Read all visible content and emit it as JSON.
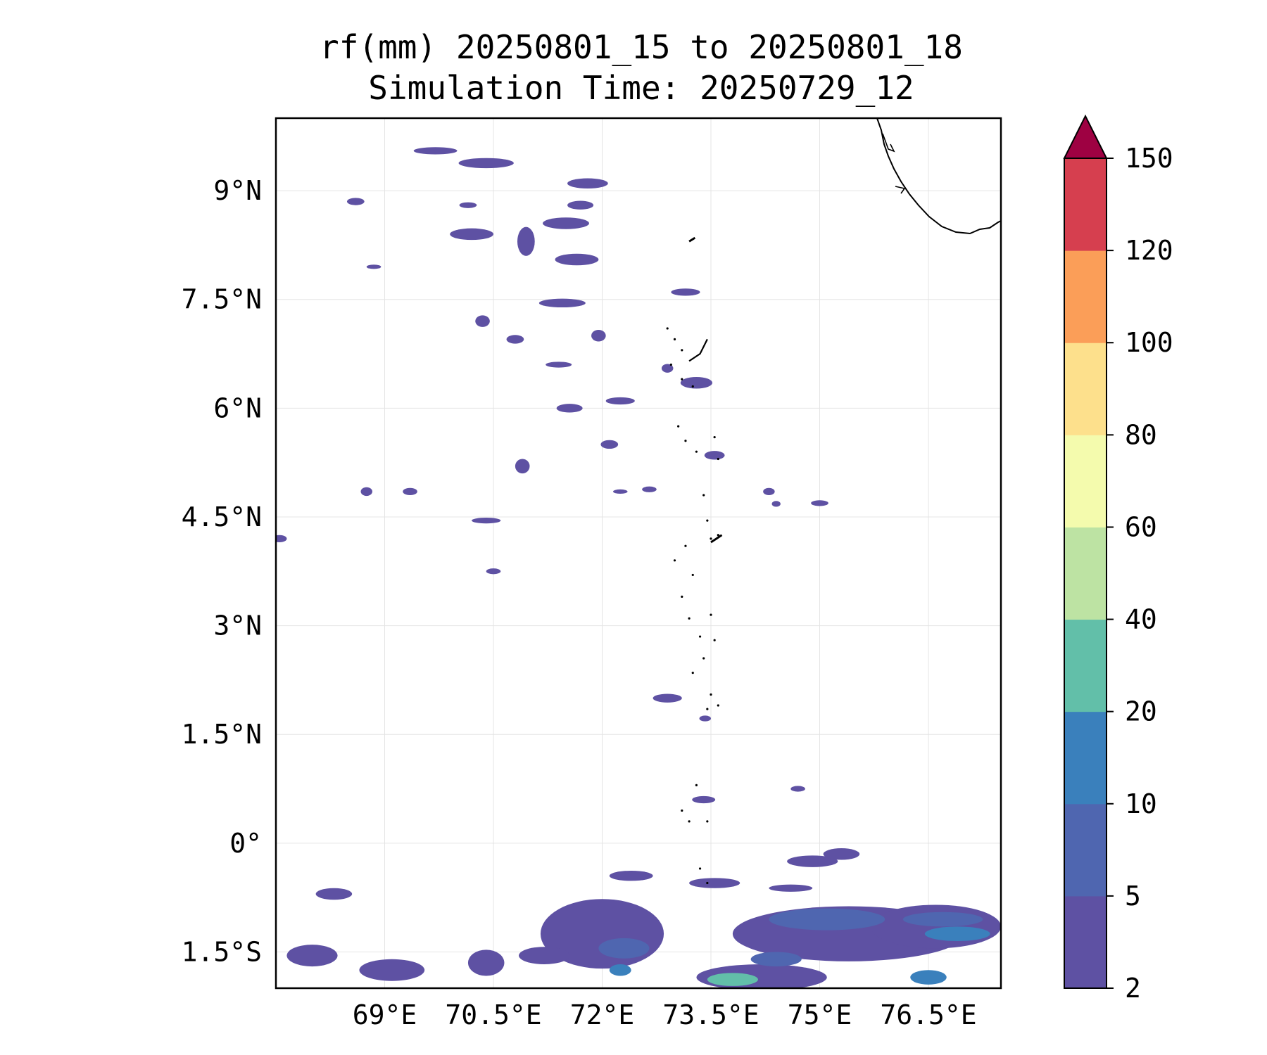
{
  "title": {
    "line1": "rf(mm) 20250801_15 to 20250801_18",
    "line2": "Simulation Time: 20250729_12"
  },
  "map": {
    "lon_range": [
      67.5,
      77.5
    ],
    "lat_range": [
      -2.0,
      10.0
    ],
    "lon_ticks": [
      {
        "value": 69.0,
        "label": "69°E"
      },
      {
        "value": 70.5,
        "label": "70.5°E"
      },
      {
        "value": 72.0,
        "label": "72°E"
      },
      {
        "value": 73.5,
        "label": "73.5°E"
      },
      {
        "value": 75.0,
        "label": "75°E"
      },
      {
        "value": 76.5,
        "label": "76.5°E"
      }
    ],
    "lat_ticks": [
      {
        "value": 9.0,
        "label": "9°N"
      },
      {
        "value": 7.5,
        "label": "7.5°N"
      },
      {
        "value": 6.0,
        "label": "6°N"
      },
      {
        "value": 4.5,
        "label": "4.5°N"
      },
      {
        "value": 3.0,
        "label": "3°N"
      },
      {
        "value": 1.5,
        "label": "1.5°N"
      },
      {
        "value": 0.0,
        "label": "0°"
      },
      {
        "value": -1.5,
        "label": "1.5°S"
      }
    ],
    "grid": true
  },
  "colorbar": {
    "levels": [
      "2",
      "5",
      "10",
      "20",
      "40",
      "60",
      "80",
      "100",
      "120",
      "150"
    ],
    "colors": [
      "#5e51a3",
      "#4f66b0",
      "#3a80bc",
      "#62bfa9",
      "#bde3a3",
      "#f4fbad",
      "#fde08c",
      "#fb9e58",
      "#d63f4f"
    ],
    "extend_color": "#9e0142"
  },
  "chart_data": {
    "type": "contour-map",
    "variable": "rf(mm)",
    "period": "20250801_15 to 20250801_18",
    "simulation_time": "20250729_12",
    "levels": [
      2,
      5,
      10,
      20,
      40,
      60,
      80,
      100,
      120,
      150
    ],
    "extend": "max",
    "rain_patches": [
      {
        "lon": 68.6,
        "lat": 8.85,
        "rx": 0.12,
        "ry": 0.05,
        "level": 2
      },
      {
        "lon": 69.7,
        "lat": 9.55,
        "rx": 0.3,
        "ry": 0.05,
        "level": 2
      },
      {
        "lon": 70.4,
        "lat": 9.38,
        "rx": 0.38,
        "ry": 0.07,
        "level": 2
      },
      {
        "lon": 71.8,
        "lat": 9.1,
        "rx": 0.28,
        "ry": 0.07,
        "level": 2
      },
      {
        "lon": 71.5,
        "lat": 8.55,
        "rx": 0.32,
        "ry": 0.08,
        "level": 2
      },
      {
        "lon": 71.65,
        "lat": 8.05,
        "rx": 0.3,
        "ry": 0.08,
        "level": 2
      },
      {
        "lon": 70.2,
        "lat": 8.4,
        "rx": 0.3,
        "ry": 0.08,
        "level": 2
      },
      {
        "lon": 70.15,
        "lat": 8.8,
        "rx": 0.12,
        "ry": 0.04,
        "level": 2
      },
      {
        "lon": 70.95,
        "lat": 8.3,
        "rx": 0.12,
        "ry": 0.2,
        "level": 2
      },
      {
        "lon": 71.7,
        "lat": 8.8,
        "rx": 0.18,
        "ry": 0.06,
        "level": 2
      },
      {
        "lon": 68.85,
        "lat": 7.95,
        "rx": 0.1,
        "ry": 0.03,
        "level": 2
      },
      {
        "lon": 71.45,
        "lat": 7.45,
        "rx": 0.32,
        "ry": 0.06,
        "level": 2
      },
      {
        "lon": 71.95,
        "lat": 7.0,
        "rx": 0.1,
        "ry": 0.08,
        "level": 2
      },
      {
        "lon": 70.35,
        "lat": 7.2,
        "rx": 0.1,
        "ry": 0.08,
        "level": 2
      },
      {
        "lon": 70.8,
        "lat": 6.95,
        "rx": 0.12,
        "ry": 0.06,
        "level": 2
      },
      {
        "lon": 71.4,
        "lat": 6.6,
        "rx": 0.18,
        "ry": 0.04,
        "level": 2
      },
      {
        "lon": 73.15,
        "lat": 7.6,
        "rx": 0.2,
        "ry": 0.05,
        "level": 2
      },
      {
        "lon": 73.3,
        "lat": 6.35,
        "rx": 0.22,
        "ry": 0.08,
        "level": 2
      },
      {
        "lon": 72.9,
        "lat": 6.55,
        "rx": 0.08,
        "ry": 0.06,
        "level": 2
      },
      {
        "lon": 72.25,
        "lat": 6.1,
        "rx": 0.2,
        "ry": 0.05,
        "level": 2
      },
      {
        "lon": 71.55,
        "lat": 6.0,
        "rx": 0.18,
        "ry": 0.06,
        "level": 2
      },
      {
        "lon": 72.1,
        "lat": 5.5,
        "rx": 0.12,
        "ry": 0.06,
        "level": 2
      },
      {
        "lon": 70.9,
        "lat": 5.2,
        "rx": 0.1,
        "ry": 0.1,
        "level": 2
      },
      {
        "lon": 73.55,
        "lat": 5.35,
        "rx": 0.14,
        "ry": 0.06,
        "level": 2
      },
      {
        "lon": 74.3,
        "lat": 4.85,
        "rx": 0.08,
        "ry": 0.05,
        "level": 2
      },
      {
        "lon": 74.4,
        "lat": 4.68,
        "rx": 0.06,
        "ry": 0.04,
        "level": 2
      },
      {
        "lon": 75.0,
        "lat": 4.69,
        "rx": 0.12,
        "ry": 0.04,
        "level": 2
      },
      {
        "lon": 72.65,
        "lat": 4.88,
        "rx": 0.1,
        "ry": 0.04,
        "level": 2
      },
      {
        "lon": 72.25,
        "lat": 4.85,
        "rx": 0.1,
        "ry": 0.03,
        "level": 2
      },
      {
        "lon": 69.35,
        "lat": 4.85,
        "rx": 0.1,
        "ry": 0.05,
        "level": 2
      },
      {
        "lon": 68.75,
        "lat": 4.85,
        "rx": 0.08,
        "ry": 0.06,
        "level": 2
      },
      {
        "lon": 70.4,
        "lat": 4.45,
        "rx": 0.2,
        "ry": 0.04,
        "level": 2
      },
      {
        "lon": 67.55,
        "lat": 4.2,
        "rx": 0.1,
        "ry": 0.05,
        "level": 2
      },
      {
        "lon": 70.5,
        "lat": 3.75,
        "rx": 0.1,
        "ry": 0.04,
        "level": 2
      },
      {
        "lon": 72.9,
        "lat": 2.0,
        "rx": 0.2,
        "ry": 0.06,
        "level": 2
      },
      {
        "lon": 73.42,
        "lat": 1.72,
        "rx": 0.08,
        "ry": 0.04,
        "level": 2
      },
      {
        "lon": 73.4,
        "lat": 0.6,
        "rx": 0.16,
        "ry": 0.05,
        "level": 2
      },
      {
        "lon": 74.7,
        "lat": 0.75,
        "rx": 0.1,
        "ry": 0.04,
        "level": 2
      },
      {
        "lon": 74.9,
        "lat": -0.25,
        "rx": 0.35,
        "ry": 0.08,
        "level": 2
      },
      {
        "lon": 75.3,
        "lat": -0.15,
        "rx": 0.25,
        "ry": 0.08,
        "level": 2
      },
      {
        "lon": 74.6,
        "lat": -0.62,
        "rx": 0.3,
        "ry": 0.05,
        "level": 2
      },
      {
        "lon": 73.55,
        "lat": -0.55,
        "rx": 0.35,
        "ry": 0.07,
        "level": 2
      },
      {
        "lon": 72.4,
        "lat": -0.45,
        "rx": 0.3,
        "ry": 0.07,
        "level": 2
      },
      {
        "lon": 68.3,
        "lat": -0.7,
        "rx": 0.25,
        "ry": 0.08,
        "level": 2
      },
      {
        "lon": 75.4,
        "lat": -1.25,
        "rx": 1.6,
        "ry": 0.38,
        "level": 2
      },
      {
        "lon": 76.6,
        "lat": -1.15,
        "rx": 0.9,
        "ry": 0.3,
        "level": 2
      },
      {
        "lon": 72.0,
        "lat": -1.25,
        "rx": 0.85,
        "ry": 0.48,
        "level": 2
      },
      {
        "lon": 74.2,
        "lat": -1.85,
        "rx": 0.9,
        "ry": 0.18,
        "level": 2
      },
      {
        "lon": 68.0,
        "lat": -1.55,
        "rx": 0.35,
        "ry": 0.15,
        "level": 2
      },
      {
        "lon": 69.1,
        "lat": -1.75,
        "rx": 0.45,
        "ry": 0.15,
        "level": 2
      },
      {
        "lon": 71.2,
        "lat": -1.55,
        "rx": 0.35,
        "ry": 0.12,
        "level": 2
      },
      {
        "lon": 70.4,
        "lat": -1.65,
        "rx": 0.25,
        "ry": 0.18,
        "level": 2
      },
      {
        "lon": 75.1,
        "lat": -1.05,
        "rx": 0.8,
        "ry": 0.15,
        "level": 5
      },
      {
        "lon": 76.7,
        "lat": -1.05,
        "rx": 0.55,
        "ry": 0.1,
        "level": 5
      },
      {
        "lon": 72.3,
        "lat": -1.45,
        "rx": 0.35,
        "ry": 0.14,
        "level": 5
      },
      {
        "lon": 74.4,
        "lat": -1.6,
        "rx": 0.35,
        "ry": 0.1,
        "level": 5
      },
      {
        "lon": 76.9,
        "lat": -1.25,
        "rx": 0.45,
        "ry": 0.1,
        "level": 10
      },
      {
        "lon": 76.5,
        "lat": -1.85,
        "rx": 0.25,
        "ry": 0.1,
        "level": 10
      },
      {
        "lon": 72.25,
        "lat": -1.75,
        "rx": 0.15,
        "ry": 0.08,
        "level": 10
      },
      {
        "lon": 73.8,
        "lat": -1.88,
        "rx": 0.35,
        "ry": 0.09,
        "level": 20
      }
    ]
  }
}
